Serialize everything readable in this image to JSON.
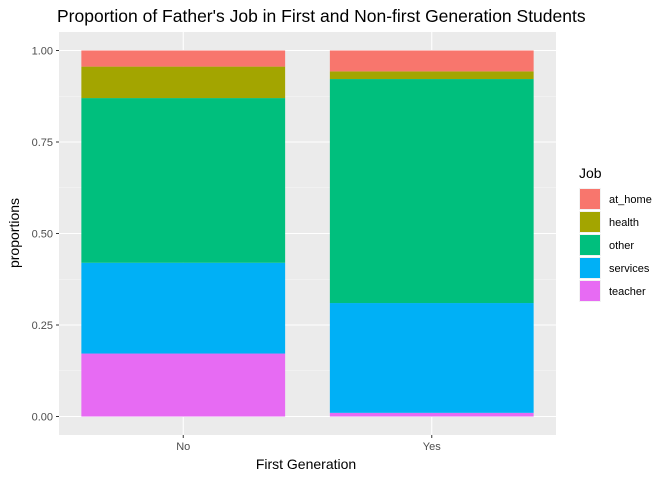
{
  "chart_data": {
    "type": "bar",
    "stacked": true,
    "title": "Proportion of Father's Job in First and Non-first Generation Students",
    "xlabel": "First Generation",
    "ylabel": "proportions",
    "categories": [
      "No",
      "Yes"
    ],
    "ylim": [
      0,
      1.04
    ],
    "yticks": [
      "0.00",
      "0.25",
      "0.50",
      "0.75",
      "1.00"
    ],
    "grid": true,
    "legend": {
      "title": "Job",
      "placement": "right"
    },
    "series": [
      {
        "name": "teacher",
        "color": "#E76BF3",
        "values": [
          0.172,
          0.01
        ]
      },
      {
        "name": "services",
        "color": "#00B0F6",
        "values": [
          0.248,
          0.3
        ]
      },
      {
        "name": "other",
        "color": "#00BF7D",
        "values": [
          0.45,
          0.612
        ]
      },
      {
        "name": "health",
        "color": "#A3A500",
        "values": [
          0.086,
          0.021
        ]
      },
      {
        "name": "at_home",
        "color": "#F8766D",
        "values": [
          0.044,
          0.057
        ]
      }
    ],
    "legend_order": [
      "at_home",
      "health",
      "other",
      "services",
      "teacher"
    ]
  }
}
